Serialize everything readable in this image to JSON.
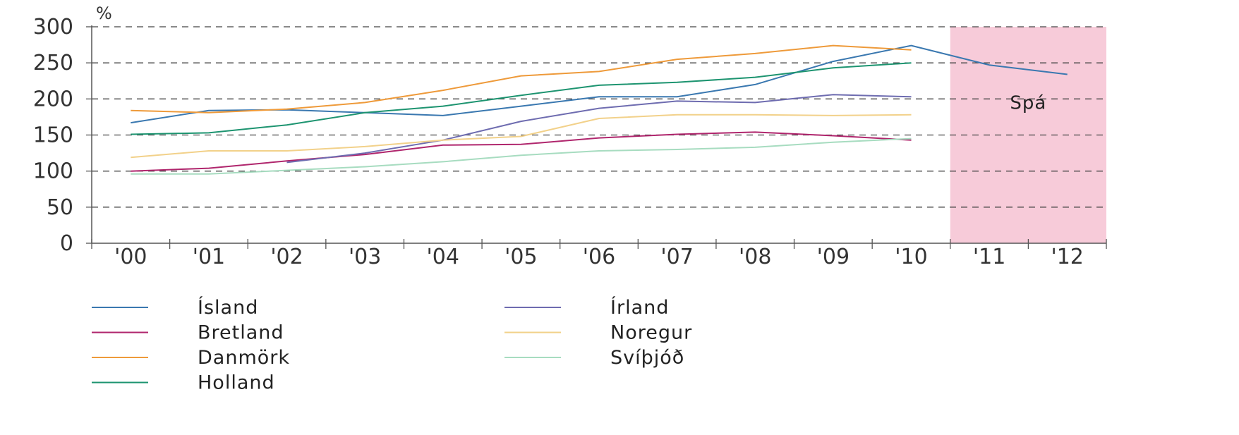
{
  "chart_data": {
    "type": "line",
    "title": "",
    "xlabel": "",
    "ylabel": "%",
    "categories": [
      "'00",
      "'01",
      "'02",
      "'03",
      "'04",
      "'05",
      "'06",
      "'07",
      "'08",
      "'09",
      "'10",
      "'11",
      "'12"
    ],
    "ylim": [
      0,
      300
    ],
    "yticks": [
      0,
      50,
      100,
      150,
      200,
      250,
      300
    ],
    "grid": "horizontal dashed",
    "forecast_region": {
      "from": "'11",
      "to": "'12",
      "label": "Spá",
      "color": "#f7cbd9"
    },
    "legend_position": "bottom",
    "series": [
      {
        "name": "Ísland",
        "color": "#3a78b0",
        "values": [
          167,
          184,
          185,
          181,
          177,
          190,
          203,
          203,
          220,
          252,
          274,
          247,
          234
        ]
      },
      {
        "name": "Bretland",
        "color": "#b0266d",
        "values": [
          100,
          104,
          114,
          123,
          136,
          137,
          146,
          151,
          154,
          149,
          143,
          null,
          null
        ]
      },
      {
        "name": "Danmörk",
        "color": "#ee9a3a",
        "values": [
          184,
          181,
          186,
          195,
          212,
          232,
          238,
          255,
          263,
          274,
          268,
          null,
          null
        ]
      },
      {
        "name": "Holland",
        "color": "#1d9470",
        "values": [
          151,
          153,
          164,
          181,
          190,
          205,
          219,
          223,
          230,
          243,
          250,
          null,
          null
        ]
      },
      {
        "name": "Írland",
        "color": "#6e6cb0",
        "values": [
          null,
          null,
          112,
          125,
          143,
          169,
          187,
          197,
          195,
          206,
          203,
          null,
          null
        ]
      },
      {
        "name": "Noregur",
        "color": "#f2d18a",
        "values": [
          119,
          128,
          128,
          134,
          143,
          148,
          173,
          178,
          178,
          177,
          178,
          null,
          null
        ]
      },
      {
        "name": "Svíþjóð",
        "color": "#a7dcc0",
        "values": [
          96,
          96,
          101,
          106,
          113,
          122,
          128,
          130,
          133,
          140,
          145,
          null,
          null
        ]
      }
    ]
  }
}
